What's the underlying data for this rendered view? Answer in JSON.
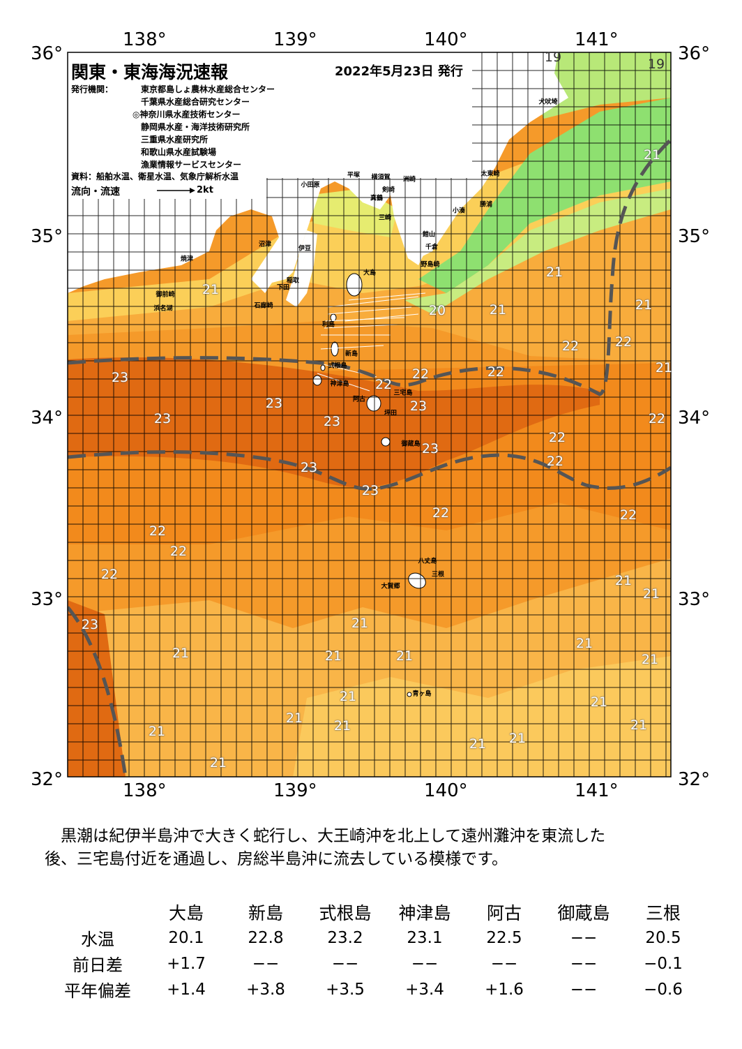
{
  "map": {
    "title": "関東・東海海況速報",
    "issue_date": "2022年5月23日 発行",
    "issuer_label": "発行機関：",
    "issuers": [
      "東京都島しょ農林水産総合センター",
      "千葉県水産総合研究センター",
      "◎神奈川県水産技術センター",
      "静岡県水産・海洋技術研究所",
      "三重県水産研究所",
      "和歌山県水産試験場",
      "漁業情報サービスセンター"
    ],
    "source": "資料：船舶水温、衛星水温、気象庁解析水温",
    "legend_label": "流向・流速",
    "legend_speed": "2kt",
    "lon_labels": [
      "138°",
      "139°",
      "140°",
      "141°"
    ],
    "lat_labels": [
      "36°",
      "35°",
      "34°",
      "33°",
      "32°"
    ],
    "temperature_labels": [
      {
        "t": "19"
      },
      {
        "t": "19"
      },
      {
        "t": "21"
      },
      {
        "t": "21"
      },
      {
        "t": "21"
      },
      {
        "t": "21"
      },
      {
        "t": "21"
      },
      {
        "t": "20"
      },
      {
        "t": "22"
      },
      {
        "t": "22"
      },
      {
        "t": "21"
      },
      {
        "t": "23"
      },
      {
        "t": "22"
      },
      {
        "t": "22"
      },
      {
        "t": "22"
      },
      {
        "t": "23"
      },
      {
        "t": "23"
      },
      {
        "t": "23"
      },
      {
        "t": "23"
      },
      {
        "t": "22"
      },
      {
        "t": "23"
      },
      {
        "t": "22"
      },
      {
        "t": "23"
      },
      {
        "t": "22"
      },
      {
        "t": "23"
      },
      {
        "t": "22"
      },
      {
        "t": "22"
      },
      {
        "t": "22"
      },
      {
        "t": "22"
      },
      {
        "t": "22"
      },
      {
        "t": "21"
      },
      {
        "t": "21"
      },
      {
        "t": "23"
      },
      {
        "t": "21"
      },
      {
        "t": "21"
      },
      {
        "t": "21"
      },
      {
        "t": "21"
      },
      {
        "t": "21"
      },
      {
        "t": "21"
      },
      {
        "t": "21"
      },
      {
        "t": "21"
      },
      {
        "t": "21"
      },
      {
        "t": "21"
      },
      {
        "t": "21"
      },
      {
        "t": "21"
      },
      {
        "t": "21"
      },
      {
        "t": "21"
      },
      {
        "t": "21"
      }
    ],
    "places": [
      "犬吠埼",
      "太東崎",
      "小湊",
      "勝浦",
      "館山",
      "千倉",
      "野島崎",
      "横須賀",
      "平塚",
      "小田原",
      "真鶴",
      "剣崎",
      "三崎",
      "洲崎",
      "大島",
      "利島",
      "新島",
      "式根島",
      "神津島",
      "三宅島",
      "坪田",
      "阿古",
      "御蔵島",
      "八丈島",
      "三根",
      "大賀郷",
      "青ヶ島",
      "石廊崎",
      "下田",
      "稲取",
      "伊豆",
      "沼津",
      "焼津",
      "御前崎",
      "浜名湖"
    ]
  },
  "summary": [
    "　黒潮は紀伊半島沖で大きく蛇行し、大王崎沖を北上して遠州灘沖を東流した",
    "後、三宅島付近を通過し、房総半島沖に流去している模様です。"
  ],
  "table": {
    "columns": [
      "大島",
      "新島",
      "式根島",
      "神津島",
      "阿古",
      "御蔵島",
      "三根"
    ],
    "rows": [
      {
        "label": "水温",
        "values": [
          "20.1",
          "22.8",
          "23.2",
          "23.1",
          "22.5",
          "−−",
          "20.5"
        ]
      },
      {
        "label": "前日差",
        "values": [
          "+1.7",
          "−−",
          "−−",
          "−−",
          "−−",
          "−−",
          "−0.1"
        ]
      },
      {
        "label": "平年偏差",
        "values": [
          "+1.4",
          "+3.8",
          "+3.5",
          "+3.4",
          "+1.6",
          "−−",
          "−0.6"
        ]
      }
    ]
  },
  "colors": {
    "sea_warm_23": "#e06a12",
    "sea_22": "#f28a1c",
    "sea_21": "#f8ac3c",
    "sea_20": "#fbd060",
    "sea_19": "#f6e878",
    "sea_18": "#c8ec80",
    "sea_17": "#90e070",
    "land": "#ffffff",
    "kuroshio_line": "#555555"
  }
}
